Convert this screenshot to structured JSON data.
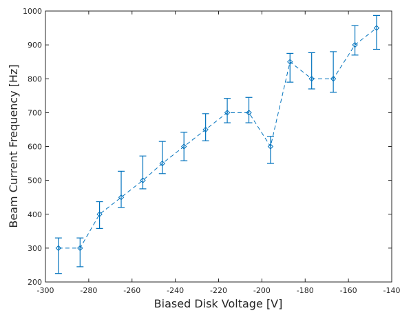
{
  "chart_data": {
    "type": "scatter",
    "title": "",
    "xlabel": "Biased Disk Voltage [V]",
    "ylabel": "Beam Current Frequency [Hz]",
    "xlim": [
      -300,
      -140
    ],
    "ylim": [
      200,
      1000
    ],
    "xticks": [
      -300,
      -280,
      -260,
      -240,
      -220,
      -200,
      -180,
      -160,
      -140
    ],
    "yticks": [
      200,
      300,
      400,
      500,
      600,
      700,
      800,
      900,
      1000
    ],
    "grid": false,
    "series": [
      {
        "color": "#0072BD",
        "line_style": "dashed",
        "marker": "diamond",
        "error_bars": true,
        "points": [
          {
            "x": -294,
            "y": 300,
            "lo": 225,
            "hi": 330
          },
          {
            "x": -284,
            "y": 300,
            "lo": 245,
            "hi": 330
          },
          {
            "x": -275,
            "y": 400,
            "lo": 358,
            "hi": 437
          },
          {
            "x": -265,
            "y": 450,
            "lo": 420,
            "hi": 527
          },
          {
            "x": -255,
            "y": 500,
            "lo": 475,
            "hi": 572
          },
          {
            "x": -246,
            "y": 550,
            "lo": 520,
            "hi": 615
          },
          {
            "x": -236,
            "y": 600,
            "lo": 558,
            "hi": 642
          },
          {
            "x": -226,
            "y": 650,
            "lo": 617,
            "hi": 697
          },
          {
            "x": -216,
            "y": 700,
            "lo": 670,
            "hi": 742
          },
          {
            "x": -206,
            "y": 700,
            "lo": 670,
            "hi": 745
          },
          {
            "x": -196,
            "y": 600,
            "lo": 550,
            "hi": 630
          },
          {
            "x": -187,
            "y": 850,
            "lo": 790,
            "hi": 875
          },
          {
            "x": -177,
            "y": 800,
            "lo": 770,
            "hi": 877
          },
          {
            "x": -167,
            "y": 800,
            "lo": 760,
            "hi": 880
          },
          {
            "x": -157,
            "y": 900,
            "lo": 870,
            "hi": 957
          },
          {
            "x": -147,
            "y": 950,
            "lo": 887,
            "hi": 987
          }
        ]
      }
    ]
  }
}
